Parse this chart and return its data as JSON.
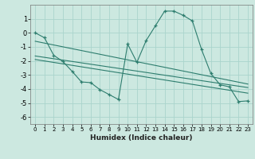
{
  "xlabel": "Humidex (Indice chaleur)",
  "ylabel": "",
  "bg_color": "#cce8e0",
  "line_color": "#2d7d6e",
  "grid_color": "#aad4cc",
  "xlim": [
    -0.5,
    23.5
  ],
  "ylim": [
    -6.5,
    2.0
  ],
  "xticks": [
    0,
    1,
    2,
    3,
    4,
    5,
    6,
    7,
    8,
    9,
    10,
    11,
    12,
    13,
    14,
    15,
    16,
    17,
    18,
    19,
    20,
    21,
    22,
    23
  ],
  "yticks": [
    -6,
    -5,
    -4,
    -3,
    -2,
    -1,
    0,
    1
  ],
  "curve_x": [
    0,
    1,
    2,
    3,
    4,
    5,
    6,
    7,
    8,
    9,
    10,
    11,
    12,
    13,
    14,
    15,
    16,
    17,
    18,
    19,
    20,
    21,
    22,
    23
  ],
  "curve_y": [
    0.0,
    -0.35,
    -1.6,
    -2.05,
    -2.75,
    -3.5,
    -3.55,
    -4.05,
    -4.4,
    -4.75,
    -0.8,
    -2.1,
    -0.55,
    0.5,
    1.55,
    1.55,
    1.25,
    0.85,
    -1.2,
    -2.9,
    -3.7,
    -3.85,
    -4.9,
    -4.85
  ],
  "line1_x": [
    0,
    23
  ],
  "line1_y": [
    -0.6,
    -3.65
  ],
  "line2_x": [
    0,
    23
  ],
  "line2_y": [
    -1.65,
    -3.9
  ],
  "line3_x": [
    0,
    23
  ],
  "line3_y": [
    -1.9,
    -4.3
  ]
}
